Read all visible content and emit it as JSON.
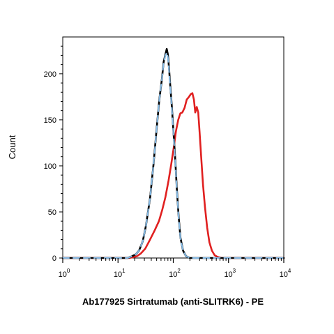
{
  "chart_data": {
    "type": "line",
    "title": "",
    "xlabel": "Ab177925 Sirtratumab (anti-SLITRK6) - PE",
    "ylabel": "Count",
    "x_scale": "log",
    "xlim": [
      1,
      10000
    ],
    "ylim": [
      0,
      240
    ],
    "grid": false,
    "legend": "none",
    "x_ticks": [
      {
        "base": "10",
        "exp": "0",
        "value": 1
      },
      {
        "base": "10",
        "exp": "1",
        "value": 10
      },
      {
        "base": "10",
        "exp": "2",
        "value": 100
      },
      {
        "base": "10",
        "exp": "3",
        "value": 1000
      },
      {
        "base": "10",
        "exp": "4",
        "value": 10000
      }
    ],
    "y_ticks": [
      "0",
      "50",
      "100",
      "150",
      "200"
    ],
    "series": [
      {
        "color": "#e02020",
        "style": "solid",
        "x": [
          1,
          10,
          16,
          19,
          22,
          26,
          31,
          38,
          46,
          55,
          63,
          72,
          82,
          92,
          102,
          112,
          123,
          134,
          146,
          160,
          175,
          192,
          208,
          222,
          236,
          250,
          266,
          283,
          300,
          320,
          345,
          375,
          410,
          450,
          500,
          560,
          640,
          750,
          900,
          1200,
          10000
        ],
        "y": [
          0,
          0,
          0,
          1,
          2,
          5,
          10,
          20,
          30,
          40,
          52,
          66,
          84,
          102,
          120,
          138,
          150,
          157,
          158,
          163,
          172,
          175,
          178,
          179,
          172,
          158,
          164,
          158,
          136,
          110,
          80,
          55,
          33,
          17,
          8,
          3,
          1,
          0,
          0,
          0,
          0
        ]
      },
      {
        "color": "#000000",
        "style": "solid",
        "x": [
          1,
          10,
          15,
          18,
          21,
          24,
          28,
          32,
          38,
          44,
          50,
          56,
          62,
          67,
          72,
          76,
          80,
          84,
          88,
          94,
          100,
          108,
          116,
          125,
          135,
          150,
          170,
          200,
          240,
          1000,
          10000
        ],
        "y": [
          0,
          0,
          0,
          2,
          4,
          8,
          18,
          35,
          65,
          102,
          140,
          172,
          193,
          213,
          221,
          227,
          221,
          205,
          188,
          165,
          140,
          110,
          75,
          45,
          22,
          8,
          2,
          0,
          0,
          0,
          0
        ]
      },
      {
        "color": "#87bde8",
        "style": "dashed",
        "x": [
          1,
          10,
          15,
          18,
          21,
          24,
          28,
          32,
          38,
          44,
          50,
          56,
          62,
          67,
          72,
          76,
          80,
          84,
          88,
          94,
          100,
          108,
          116,
          125,
          135,
          150,
          170,
          200,
          240,
          1000,
          10000
        ],
        "y": [
          0,
          0,
          0,
          2,
          4,
          8,
          18,
          35,
          65,
          102,
          140,
          172,
          193,
          212,
          220,
          223,
          218,
          203,
          186,
          163,
          138,
          108,
          74,
          44,
          21,
          8,
          2,
          0,
          0,
          0,
          0
        ]
      }
    ]
  }
}
